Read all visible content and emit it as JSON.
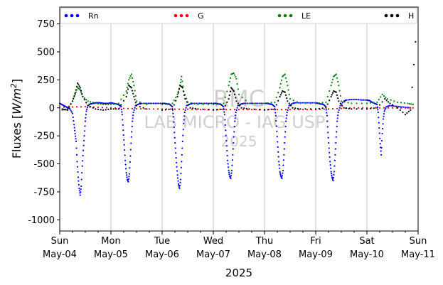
{
  "chart_data": {
    "type": "scatter",
    "title": "",
    "ylabel_text": "Fluxes [",
    "ylabel_unit_base": "W/m",
    "ylabel_unit_exp": "2",
    "ylabel_close": "]",
    "xlabel": "2025",
    "ylim": [
      -1100,
      900
    ],
    "yticks": [
      750,
      500,
      250,
      0,
      -250,
      -500,
      -750,
      -1000
    ],
    "xlim_days": [
      0,
      7
    ],
    "grid": "vertical at day boundaries",
    "legend_position": "top, horizontal",
    "x_ticks": [
      {
        "day": "Sun",
        "date": "May-04"
      },
      {
        "day": "Mon",
        "date": "May-05"
      },
      {
        "day": "Tue",
        "date": "May-06"
      },
      {
        "day": "Wed",
        "date": "May-07"
      },
      {
        "day": "Thu",
        "date": "May-08"
      },
      {
        "day": "Fri",
        "date": "May-09"
      },
      {
        "day": "Sat",
        "date": "May-10"
      },
      {
        "day": "Sun",
        "date": "May-11"
      }
    ],
    "watermark": [
      "RMC",
      "LAB MICRO - IAG USP",
      "2025"
    ],
    "series": [
      {
        "name": "Rn",
        "color": "#0000ff",
        "points": [
          [
            0.0,
            40
          ],
          [
            0.04,
            30
          ],
          [
            0.08,
            20
          ],
          [
            0.12,
            10
          ],
          [
            0.16,
            0
          ],
          [
            0.2,
            -10
          ],
          [
            0.25,
            -50
          ],
          [
            0.28,
            -150
          ],
          [
            0.3,
            -230
          ],
          [
            0.32,
            -300
          ],
          [
            0.34,
            -480
          ],
          [
            0.36,
            -620
          ],
          [
            0.38,
            -720
          ],
          [
            0.4,
            -780
          ],
          [
            0.42,
            -700
          ],
          [
            0.44,
            -520
          ],
          [
            0.46,
            -380
          ],
          [
            0.48,
            -250
          ],
          [
            0.5,
            -120
          ],
          [
            0.52,
            -30
          ],
          [
            0.55,
            20
          ],
          [
            0.6,
            35
          ],
          [
            0.65,
            40
          ],
          [
            0.7,
            45
          ],
          [
            0.75,
            45
          ],
          [
            0.8,
            45
          ],
          [
            0.85,
            40
          ],
          [
            0.9,
            40
          ],
          [
            0.95,
            40
          ],
          [
            1.0,
            45
          ],
          [
            1.05,
            40
          ],
          [
            1.1,
            35
          ],
          [
            1.15,
            30
          ],
          [
            1.2,
            10
          ],
          [
            1.22,
            -60
          ],
          [
            1.24,
            -200
          ],
          [
            1.26,
            -330
          ],
          [
            1.28,
            -470
          ],
          [
            1.3,
            -580
          ],
          [
            1.32,
            -640
          ],
          [
            1.34,
            -660
          ],
          [
            1.36,
            -590
          ],
          [
            1.38,
            -430
          ],
          [
            1.4,
            -260
          ],
          [
            1.42,
            -120
          ],
          [
            1.44,
            -40
          ],
          [
            1.48,
            20
          ],
          [
            1.55,
            35
          ],
          [
            1.6,
            40
          ],
          [
            1.7,
            40
          ],
          [
            1.8,
            40
          ],
          [
            1.9,
            40
          ],
          [
            2.0,
            40
          ],
          [
            2.05,
            40
          ],
          [
            2.1,
            35
          ],
          [
            2.15,
            30
          ],
          [
            2.2,
            10
          ],
          [
            2.22,
            -80
          ],
          [
            2.24,
            -220
          ],
          [
            2.26,
            -360
          ],
          [
            2.28,
            -490
          ],
          [
            2.3,
            -600
          ],
          [
            2.32,
            -680
          ],
          [
            2.34,
            -720
          ],
          [
            2.36,
            -640
          ],
          [
            2.38,
            -480
          ],
          [
            2.4,
            -300
          ],
          [
            2.42,
            -140
          ],
          [
            2.44,
            -40
          ],
          [
            2.48,
            20
          ],
          [
            2.55,
            35
          ],
          [
            2.6,
            40
          ],
          [
            2.7,
            40
          ],
          [
            2.8,
            40
          ],
          [
            2.9,
            40
          ],
          [
            3.0,
            40
          ],
          [
            3.05,
            40
          ],
          [
            3.1,
            35
          ],
          [
            3.15,
            30
          ],
          [
            3.2,
            10
          ],
          [
            3.22,
            -60
          ],
          [
            3.24,
            -200
          ],
          [
            3.26,
            -340
          ],
          [
            3.28,
            -470
          ],
          [
            3.3,
            -560
          ],
          [
            3.32,
            -610
          ],
          [
            3.34,
            -630
          ],
          [
            3.36,
            -560
          ],
          [
            3.38,
            -420
          ],
          [
            3.4,
            -260
          ],
          [
            3.42,
            -120
          ],
          [
            3.44,
            -40
          ],
          [
            3.48,
            20
          ],
          [
            3.55,
            35
          ],
          [
            3.6,
            40
          ],
          [
            3.7,
            40
          ],
          [
            3.8,
            40
          ],
          [
            3.9,
            40
          ],
          [
            4.0,
            40
          ],
          [
            4.05,
            40
          ],
          [
            4.1,
            35
          ],
          [
            4.15,
            30
          ],
          [
            4.2,
            10
          ],
          [
            4.22,
            -70
          ],
          [
            4.24,
            -210
          ],
          [
            4.26,
            -350
          ],
          [
            4.28,
            -480
          ],
          [
            4.3,
            -570
          ],
          [
            4.32,
            -610
          ],
          [
            4.34,
            -630
          ],
          [
            4.36,
            -560
          ],
          [
            4.38,
            -420
          ],
          [
            4.4,
            -260
          ],
          [
            4.42,
            -120
          ],
          [
            4.44,
            -40
          ],
          [
            4.48,
            20
          ],
          [
            4.55,
            40
          ],
          [
            4.6,
            45
          ],
          [
            4.7,
            45
          ],
          [
            4.8,
            45
          ],
          [
            4.9,
            45
          ],
          [
            5.0,
            45
          ],
          [
            5.05,
            40
          ],
          [
            5.1,
            35
          ],
          [
            5.15,
            30
          ],
          [
            5.2,
            10
          ],
          [
            5.22,
            -70
          ],
          [
            5.24,
            -220
          ],
          [
            5.26,
            -360
          ],
          [
            5.28,
            -480
          ],
          [
            5.3,
            -570
          ],
          [
            5.32,
            -620
          ],
          [
            5.34,
            -650
          ],
          [
            5.36,
            -570
          ],
          [
            5.38,
            -420
          ],
          [
            5.4,
            -260
          ],
          [
            5.42,
            -120
          ],
          [
            5.44,
            -40
          ],
          [
            5.48,
            20
          ],
          [
            5.55,
            60
          ],
          [
            5.6,
            70
          ],
          [
            5.7,
            75
          ],
          [
            5.8,
            75
          ],
          [
            5.9,
            70
          ],
          [
            6.0,
            70
          ],
          [
            6.05,
            65
          ],
          [
            6.1,
            50
          ],
          [
            6.15,
            40
          ],
          [
            6.2,
            30
          ],
          [
            6.22,
            -40
          ],
          [
            6.24,
            -180
          ],
          [
            6.26,
            -320
          ],
          [
            6.28,
            -420
          ],
          [
            6.3,
            -230
          ],
          [
            6.32,
            -100
          ],
          [
            6.34,
            -30
          ],
          [
            6.38,
            10
          ],
          [
            6.45,
            20
          ],
          [
            6.55,
            15
          ],
          [
            6.65,
            10
          ],
          [
            6.75,
            5
          ],
          [
            6.85,
            0
          ]
        ]
      },
      {
        "name": "G",
        "color": "#ff0000",
        "points": [
          [
            0.0,
            5
          ],
          [
            0.25,
            8
          ],
          [
            0.5,
            10
          ],
          [
            0.75,
            5
          ],
          [
            1.0,
            0
          ],
          [
            1.25,
            -5
          ],
          [
            1.5,
            -8
          ],
          [
            1.75,
            -10
          ],
          [
            2.0,
            -10
          ],
          [
            2.25,
            -12
          ],
          [
            2.5,
            -12
          ],
          [
            2.75,
            -15
          ],
          [
            3.0,
            -15
          ],
          [
            3.25,
            -15
          ],
          [
            3.5,
            -15
          ],
          [
            3.75,
            -15
          ],
          [
            4.0,
            -15
          ],
          [
            4.25,
            -15
          ],
          [
            4.5,
            -15
          ],
          [
            4.75,
            -15
          ],
          [
            5.0,
            -15
          ],
          [
            5.25,
            -10
          ],
          [
            5.5,
            -5
          ],
          [
            5.75,
            0
          ],
          [
            6.0,
            0
          ],
          [
            6.25,
            0
          ],
          [
            6.5,
            0
          ],
          [
            6.75,
            0
          ],
          [
            6.9,
            0
          ]
        ]
      },
      {
        "name": "LE",
        "color": "#008000",
        "points": [
          [
            0.05,
            -20
          ],
          [
            0.15,
            -10
          ],
          [
            0.25,
            60
          ],
          [
            0.3,
            120
          ],
          [
            0.35,
            180
          ],
          [
            0.4,
            160
          ],
          [
            0.45,
            100
          ],
          [
            0.55,
            60
          ],
          [
            0.7,
            40
          ],
          [
            0.85,
            30
          ],
          [
            1.0,
            30
          ],
          [
            1.15,
            40
          ],
          [
            1.3,
            150
          ],
          [
            1.35,
            250
          ],
          [
            1.4,
            300
          ],
          [
            1.45,
            200
          ],
          [
            1.5,
            60
          ],
          [
            1.7,
            30
          ],
          [
            2.0,
            30
          ],
          [
            2.2,
            40
          ],
          [
            2.3,
            120
          ],
          [
            2.35,
            200
          ],
          [
            2.38,
            280
          ],
          [
            2.42,
            150
          ],
          [
            2.5,
            50
          ],
          [
            2.7,
            30
          ],
          [
            3.0,
            30
          ],
          [
            3.2,
            40
          ],
          [
            3.3,
            200
          ],
          [
            3.35,
            300
          ],
          [
            3.4,
            310
          ],
          [
            3.45,
            260
          ],
          [
            3.5,
            120
          ],
          [
            3.7,
            40
          ],
          [
            4.0,
            40
          ],
          [
            4.2,
            50
          ],
          [
            4.3,
            180
          ],
          [
            4.35,
            280
          ],
          [
            4.4,
            300
          ],
          [
            4.45,
            200
          ],
          [
            4.5,
            80
          ],
          [
            4.7,
            40
          ],
          [
            5.0,
            40
          ],
          [
            5.2,
            50
          ],
          [
            5.3,
            200
          ],
          [
            5.35,
            280
          ],
          [
            5.4,
            300
          ],
          [
            5.45,
            200
          ],
          [
            5.5,
            60
          ],
          [
            5.7,
            40
          ],
          [
            6.0,
            40
          ],
          [
            6.2,
            50
          ],
          [
            6.3,
            120
          ],
          [
            6.4,
            80
          ],
          [
            6.6,
            50
          ],
          [
            6.8,
            40
          ],
          [
            6.9,
            30
          ]
        ]
      },
      {
        "name": "H",
        "color": "#000000",
        "points": [
          [
            0.05,
            -10
          ],
          [
            0.15,
            -20
          ],
          [
            0.25,
            60
          ],
          [
            0.3,
            130
          ],
          [
            0.35,
            220
          ],
          [
            0.4,
            180
          ],
          [
            0.45,
            100
          ],
          [
            0.55,
            20
          ],
          [
            0.7,
            -10
          ],
          [
            0.85,
            -20
          ],
          [
            1.0,
            -10
          ],
          [
            1.15,
            -10
          ],
          [
            1.3,
            100
          ],
          [
            1.35,
            200
          ],
          [
            1.4,
            180
          ],
          [
            1.45,
            100
          ],
          [
            1.5,
            20
          ],
          [
            1.7,
            -10
          ],
          [
            2.0,
            -20
          ],
          [
            2.2,
            -10
          ],
          [
            2.3,
            100
          ],
          [
            2.35,
            200
          ],
          [
            2.4,
            180
          ],
          [
            2.45,
            80
          ],
          [
            2.55,
            0
          ],
          [
            2.7,
            -10
          ],
          [
            3.0,
            -20
          ],
          [
            3.2,
            -10
          ],
          [
            3.3,
            80
          ],
          [
            3.35,
            180
          ],
          [
            3.4,
            150
          ],
          [
            3.45,
            60
          ],
          [
            3.55,
            0
          ],
          [
            3.7,
            -10
          ],
          [
            4.0,
            -20
          ],
          [
            4.2,
            -10
          ],
          [
            4.3,
            100
          ],
          [
            4.35,
            150
          ],
          [
            4.4,
            140
          ],
          [
            4.45,
            60
          ],
          [
            4.55,
            0
          ],
          [
            4.7,
            -10
          ],
          [
            5.0,
            -10
          ],
          [
            5.2,
            0
          ],
          [
            5.3,
            100
          ],
          [
            5.35,
            150
          ],
          [
            5.4,
            140
          ],
          [
            5.45,
            60
          ],
          [
            5.55,
            0
          ],
          [
            5.7,
            -10
          ],
          [
            6.0,
            -10
          ],
          [
            6.2,
            0
          ],
          [
            6.35,
            80
          ],
          [
            6.45,
            40
          ],
          [
            6.6,
            0
          ],
          [
            6.75,
            -60
          ],
          [
            6.85,
            -20
          ],
          [
            6.95,
            590
          ]
        ]
      }
    ]
  }
}
